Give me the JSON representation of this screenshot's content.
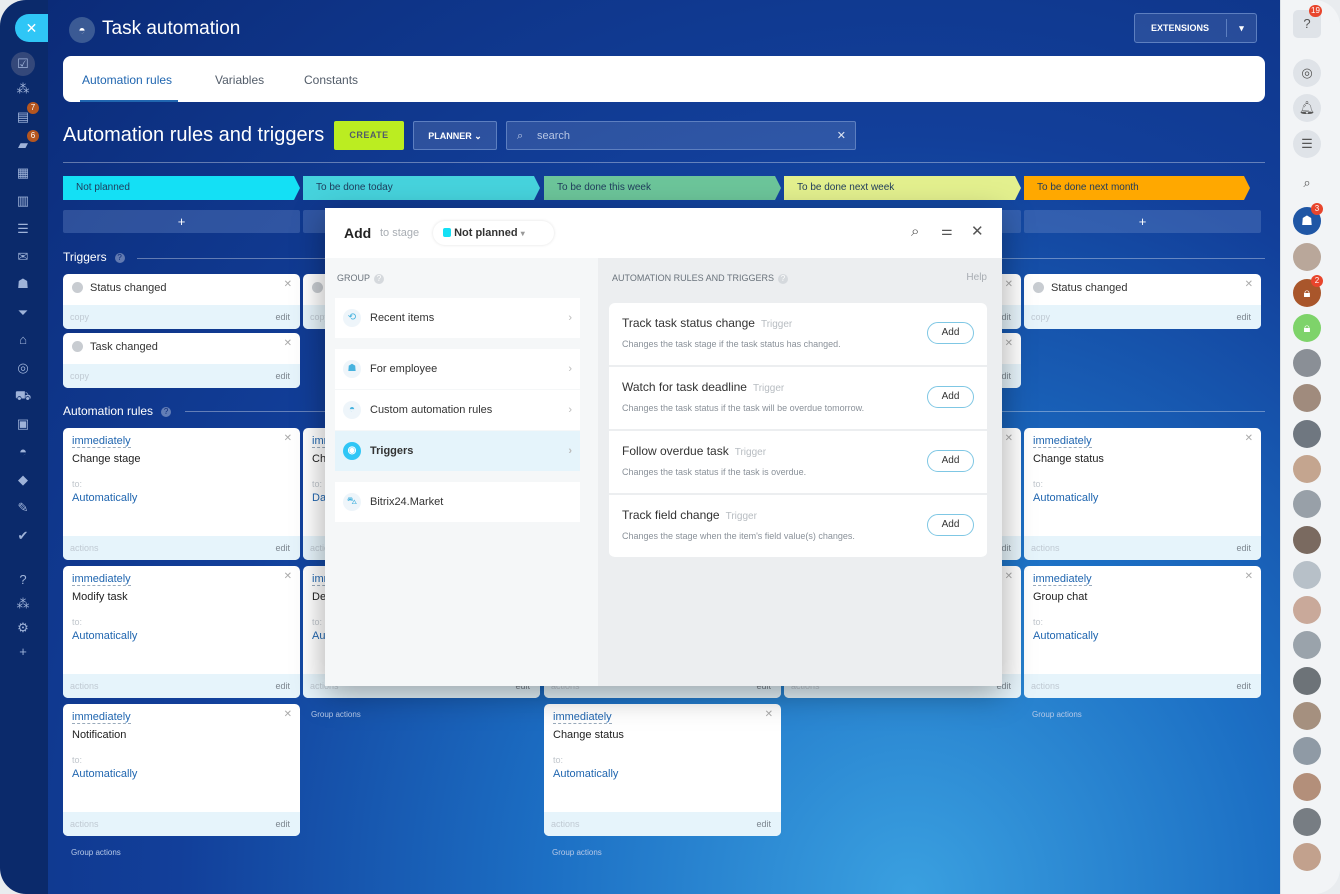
{
  "app": {
    "title": "Task automation",
    "extensions_label": "EXTENSIONS"
  },
  "tabs": [
    {
      "label": "Automation rules",
      "active": true
    },
    {
      "label": "Variables"
    },
    {
      "label": "Constants"
    }
  ],
  "toolbar": {
    "heading": "Automation rules and triggers",
    "create_label": "CREATE",
    "planner_label": "PLANNER",
    "search_placeholder": "search"
  },
  "stages": [
    {
      "label": "Not planned",
      "color": "#14e0f5"
    },
    {
      "label": "To be done today",
      "color": "#46d3dd"
    },
    {
      "label": "To be done this week",
      "color": "#6cc59a"
    },
    {
      "label": "To be done next week",
      "color": "#e3f08e"
    },
    {
      "label": "To be done next month",
      "color": "#ffa800"
    }
  ],
  "sections": {
    "triggers": "Triggers",
    "rules": "Automation rules",
    "plus": "+",
    "copy": "copy",
    "edit": "edit",
    "actions": "actions",
    "to": "to:",
    "group_actions": "Group actions"
  },
  "triggers": {
    "col1": [
      "Status changed",
      "Task changed"
    ],
    "col5": [
      "Status changed"
    ]
  },
  "rules": {
    "col1": [
      {
        "when": "immediately",
        "action": "Change stage",
        "target": "Automatically"
      },
      {
        "when": "immediately",
        "action": "Modify task",
        "target": "Automatically"
      },
      {
        "when": "immediately",
        "action": "Notification",
        "target": "Automatically"
      }
    ],
    "col2": [
      {
        "when": "immediately",
        "action": "Ch",
        "target": "Da"
      },
      {
        "when": "immediately",
        "action": "De",
        "target": "Automatically"
      }
    ],
    "col3": [
      {
        "when": "immediately",
        "action": "Change status",
        "target": "Automatically"
      }
    ],
    "col5": [
      {
        "when": "immediately",
        "action": "Change status",
        "target": "Automatically"
      },
      {
        "when": "immediately",
        "action": "Group chat",
        "target": "Automatically"
      }
    ]
  },
  "modal": {
    "title": "Add",
    "subtitle": "to stage",
    "stage": "Not planned",
    "group_header": "GROUP",
    "list_header": "AUTOMATION RULES AND TRIGGERS",
    "help": "Help",
    "groups": [
      {
        "label": "Recent items",
        "icon": "history-icon"
      },
      {
        "label": "For employee",
        "icon": "users-icon"
      },
      {
        "label": "Custom automation rules",
        "icon": "robot-icon"
      },
      {
        "label": "Triggers",
        "icon": "trigger-icon",
        "active": true
      },
      {
        "label": "Bitrix24.Market",
        "icon": "market-icon"
      }
    ],
    "items": [
      {
        "title": "Track task status change",
        "tag": "Trigger",
        "desc": "Changes the task stage if the task status has changed.",
        "button": "Add"
      },
      {
        "title": "Watch for task deadline",
        "tag": "Trigger",
        "desc": "Changes the task status if the task will be overdue tomorrow.",
        "button": "Add"
      },
      {
        "title": "Follow overdue task",
        "tag": "Trigger",
        "desc": "Changes the task status if the task is overdue.",
        "button": "Add"
      },
      {
        "title": "Track field change",
        "tag": "Trigger",
        "desc": "Changes the stage when the item's field value(s) changes.",
        "button": "Add"
      }
    ]
  },
  "left_badges": [
    "7",
    "6"
  ],
  "right_badges": {
    "help": "19",
    "chat": "3",
    "lock": "2"
  }
}
